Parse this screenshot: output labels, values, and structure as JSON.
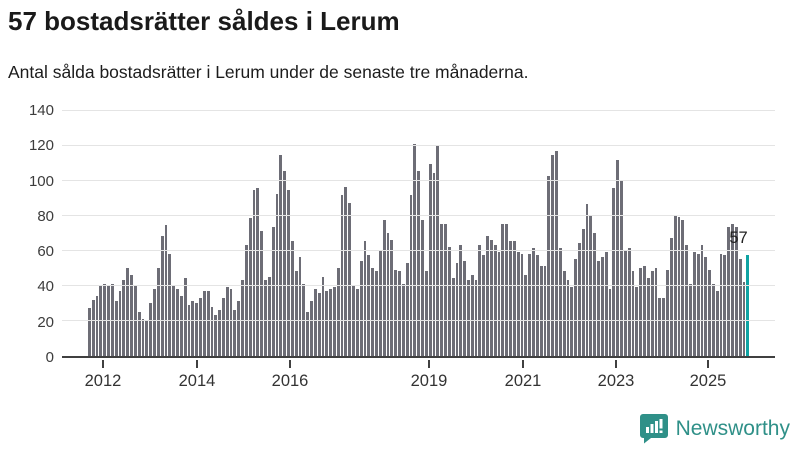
{
  "header": {
    "title": "57 bostadsrätter såldes i Lerum",
    "subtitle": "Antal sålda bostadsrätter i Lerum under de senaste tre månaderna."
  },
  "branding": {
    "name": "Newsworthy",
    "icon": "bar-chart-speech-bubble-icon",
    "color": "#2f9088"
  },
  "colors": {
    "bar": "#6d6d76",
    "highlight": "#0fa3a3",
    "grid": "#e4e4e4",
    "axis": "#404040",
    "title_text": "#1a1a1a",
    "tick_text": "#3c3c3c"
  },
  "chart_data": {
    "type": "bar",
    "title": "57 bostadsrätter såldes i Lerum",
    "subtitle": "Antal sålda bostadsrätter i Lerum under de senaste tre månaderna.",
    "xlabel": "",
    "ylabel": "",
    "ylim": [
      0,
      140
    ],
    "grid": "horizontal",
    "yticks": [
      0,
      20,
      40,
      60,
      80,
      100,
      120,
      140
    ],
    "xticks": [
      {
        "label": "2012",
        "pos_pct": 5.75
      },
      {
        "label": "2014",
        "pos_pct": 18.93
      },
      {
        "label": "2016",
        "pos_pct": 31.98
      },
      {
        "label": "2019",
        "pos_pct": 51.47
      },
      {
        "label": "2021",
        "pos_pct": 64.66
      },
      {
        "label": "2023",
        "pos_pct": 77.7
      },
      {
        "label": "2025",
        "pos_pct": 90.6
      }
    ],
    "series_note": "monthly rolling 3-month sales count, ~2012 to 2025; last bar highlighted",
    "values": [
      27,
      32,
      34,
      40,
      41,
      40,
      41,
      31,
      37,
      43,
      50,
      46,
      40,
      25,
      21,
      20,
      30,
      38,
      50,
      68,
      74,
      58,
      40,
      38,
      34,
      44,
      29,
      31,
      30,
      33,
      37,
      37,
      28,
      23,
      26,
      33,
      39,
      38,
      26,
      31,
      43,
      63,
      78,
      94,
      95,
      71,
      43,
      45,
      73,
      92,
      114,
      105,
      94,
      65,
      48,
      56,
      41,
      25,
      31,
      38,
      36,
      45,
      37,
      38,
      39,
      50,
      91,
      96,
      87,
      40,
      38,
      54,
      65,
      57,
      50,
      48,
      60,
      77,
      70,
      66,
      49,
      48,
      41,
      53,
      91,
      120,
      105,
      77,
      48,
      109,
      104,
      119,
      75,
      75,
      62,
      44,
      53,
      63,
      54,
      43,
      46,
      43,
      63,
      57,
      68,
      66,
      63,
      59,
      75,
      75,
      65,
      65,
      59,
      58,
      46,
      58,
      61,
      57,
      51,
      51,
      102,
      114,
      116,
      61,
      48,
      43,
      39,
      55,
      64,
      72,
      86,
      80,
      70,
      54,
      56,
      59,
      38,
      95,
      111,
      99,
      60,
      61,
      48,
      39,
      50,
      51,
      44,
      48,
      50,
      33,
      33,
      49,
      67,
      80,
      79,
      77,
      63,
      41,
      59,
      58,
      63,
      56,
      49,
      41,
      37,
      58,
      57,
      73,
      75,
      73,
      55,
      42,
      57
    ],
    "highlight": {
      "index": 172,
      "value": 57,
      "label": "57",
      "color": "#0fa3a3"
    }
  }
}
